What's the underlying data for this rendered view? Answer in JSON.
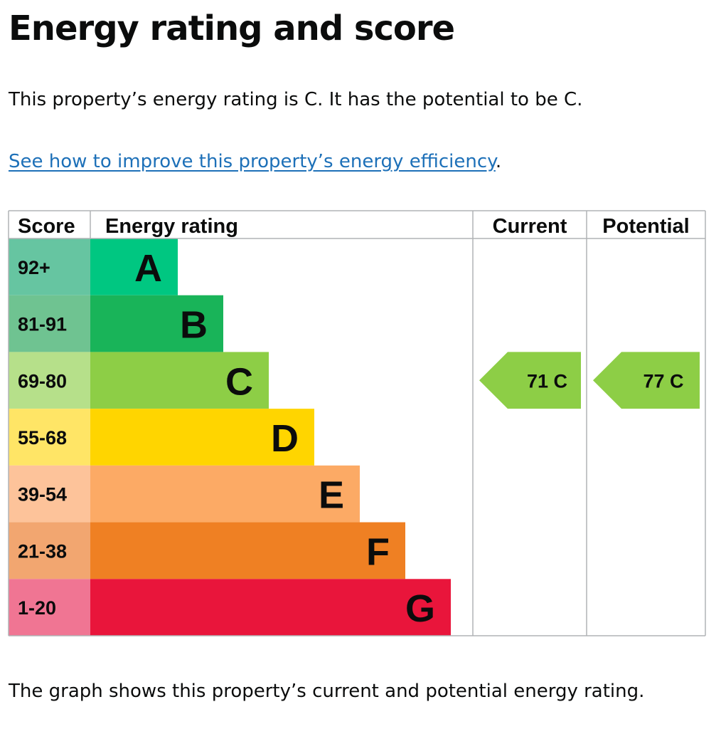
{
  "header": {
    "title": "Energy rating and score"
  },
  "summary": {
    "text": "This property’s energy rating is C. It has the potential to be C."
  },
  "improve": {
    "link_text": "See how to improve this property’s energy efficiency",
    "trailing": "."
  },
  "caption": {
    "text": "The graph shows this property’s current and potential energy rating."
  },
  "chart_data": {
    "type": "bar",
    "columns": {
      "score": "Score",
      "rating": "Energy rating",
      "current": "Current",
      "potential": "Potential"
    },
    "bands": [
      {
        "letter": "A",
        "range": "92+",
        "color": "#00c781",
        "score_bg": "#66c5a1"
      },
      {
        "letter": "B",
        "range": "81-91",
        "color": "#19b459",
        "score_bg": "#6fc391"
      },
      {
        "letter": "C",
        "range": "69-80",
        "color": "#8dce46",
        "score_bg": "#b6e08a"
      },
      {
        "letter": "D",
        "range": "55-68",
        "color": "#ffd500",
        "score_bg": "#ffe566"
      },
      {
        "letter": "E",
        "range": "39-54",
        "color": "#fcaa65",
        "score_bg": "#fdc39a"
      },
      {
        "letter": "F",
        "range": "21-38",
        "color": "#ef8023",
        "score_bg": "#f2a670"
      },
      {
        "letter": "G",
        "range": "1-20",
        "color": "#e9153b",
        "score_bg": "#f07593"
      }
    ],
    "current": {
      "score": 71,
      "letter": "C",
      "label": "71  C",
      "color": "#8dce46"
    },
    "potential": {
      "score": 77,
      "letter": "C",
      "label": "77  C",
      "color": "#8dce46"
    },
    "grid_color": "#b1b4b6"
  }
}
